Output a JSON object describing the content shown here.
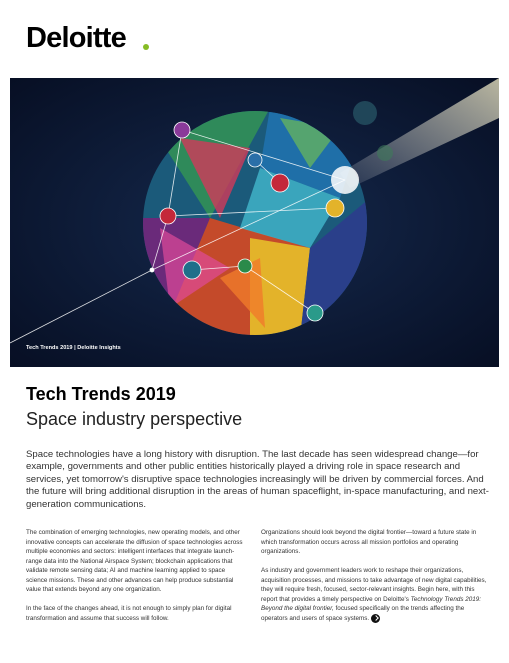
{
  "header": {
    "logo": "Deloitte"
  },
  "hero": {
    "caption": "Tech Trends 2019 | Deloitte Insights"
  },
  "title": "Tech Trends 2019",
  "subtitle": "Space industry perspective",
  "intro": "Space technologies have a long history with disruption. The last decade has seen widespread change—for example, governments and other public entities historically played a driving role in space research and services, yet tomorrow's disruptive space technologies increasingly will be driven by commercial forces. And the future will bring additional disruption in the areas of human spaceflight, in-space manufacturing, and next-generation communications.",
  "columns": [
    {
      "paragraphs": [
        {
          "parts": [
            "The combination of emerging technologies, new operating models, and other innovative concepts can accelerate the diffusion of space technologies across multiple economies and sectors: intelligent interfaces that integrate launch-range data into the National Airspace System; blockchain applications that validate remote sensing data; AI and machine learning applied to space science missions. These and other advances can help produce substantial value that extends beyond any one organization."
          ]
        },
        {
          "parts": [
            "In the face of the changes ahead, it is not enough to simply plan for digital transformation and assume that success will follow."
          ]
        }
      ]
    },
    {
      "paragraphs": [
        {
          "parts": [
            "Organizations should look beyond the digital frontier—toward a future state in which transformation occurs across all mission portfolios and operating organizations."
          ]
        },
        {
          "parts": [
            "As industry and government leaders work to reshape their organizations, acquisition processes, and missions to take advantage of new digital capabilities, they will require fresh, focused, sector-relevant insights. Begin here, with this report that provides a timely perspective on Deloitte's ",
            "Technology Trends 2019: Beyond the digital frontier,",
            " focused specifically on the trends affecting the operators and users of space systems."
          ]
        }
      ]
    }
  ]
}
